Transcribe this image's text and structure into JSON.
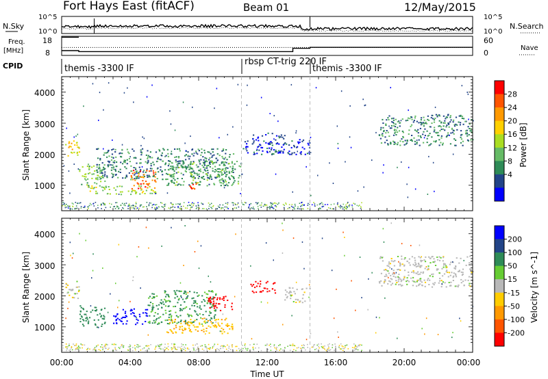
{
  "header": {
    "station": "Fort Hays East (fitACF)",
    "beam": "Beam 01",
    "date": "12/May/2015"
  },
  "noise_panel": {
    "left_label": "N.Sky",
    "right_label": "N.Search",
    "ticks_left": [
      "10^5",
      "10^0"
    ],
    "ticks_right": [
      "10^5",
      "10^0"
    ]
  },
  "freq_panel": {
    "left_label_1": "Freq.",
    "left_label_2": "[MHz]",
    "right_label": "Nave",
    "ticks_left": [
      "18",
      "8"
    ],
    "ticks_right": [
      "60",
      "0"
    ]
  },
  "cpid": {
    "label": "CPID",
    "segments": [
      {
        "name": "themis -3300 IF",
        "start_h": 0.0
      },
      {
        "name": "rbsp CT-trig 220 IF",
        "start_h": 10.5
      },
      {
        "name": "themis -3300 IF",
        "start_h": 14.5
      }
    ]
  },
  "power_panel": {
    "ylabel": "Slant Range [km]",
    "yticks": [
      "4000",
      "3000",
      "2000",
      "1000"
    ],
    "colorbar_label": "Power [dB]",
    "colorbar_ticks": [
      "28",
      "24",
      "20",
      "16",
      "12",
      "8",
      "4"
    ],
    "colors": [
      "#0000ff",
      "#224488",
      "#2e8b57",
      "#66bb66",
      "#aadd22",
      "#ffd000",
      "#ff9900",
      "#ff5500",
      "#ff0000"
    ]
  },
  "velocity_panel": {
    "ylabel": "Slant Range [km]",
    "yticks": [
      "4000",
      "3000",
      "2000",
      "1000"
    ],
    "colorbar_label": "Velocity [m s^-1]",
    "colorbar_ticks": [
      "200",
      "100",
      "50",
      "15",
      "-15",
      "-50",
      "-100",
      "-200"
    ],
    "colors": [
      "#0000ff",
      "#224488",
      "#2e8b57",
      "#66cc33",
      "#b8b8b8",
      "#ffcc00",
      "#ff9900",
      "#ff5500",
      "#ff0000"
    ]
  },
  "x_axis": {
    "label": "Time UT",
    "ticks": [
      "00:00",
      "04:00",
      "08:00",
      "12:00",
      "16:00",
      "20:00",
      "00:00"
    ]
  },
  "chart_data": {
    "type": "heatmap",
    "x_range_hours": [
      0,
      24
    ],
    "y_range_km": [
      180,
      4500
    ],
    "x_major_ticks_hours": [
      0,
      4,
      8,
      12,
      16,
      20,
      24
    ],
    "y_ticks_km": [
      1000,
      2000,
      3000,
      4000
    ],
    "frequency_mhz_steps": [
      {
        "start_h": 0.0,
        "end_h": 1.0,
        "freq": 10.5
      },
      {
        "start_h": 1.0,
        "end_h": 10.5,
        "freq": 10.0
      },
      {
        "start_h": 10.5,
        "end_h": 13.5,
        "freq": 10.0
      },
      {
        "start_h": 13.5,
        "end_h": 14.5,
        "freq": 11.7
      },
      {
        "start_h": 14.5,
        "end_h": 24.0,
        "freq": 12.2
      }
    ],
    "nave_level": 25,
    "power_echo_regions": [
      {
        "t0": 0.2,
        "t1": 1.0,
        "r0": 1900,
        "r1": 2500,
        "db": 20
      },
      {
        "t0": 1.0,
        "t1": 2.5,
        "r0": 1000,
        "r1": 1700,
        "db": 14
      },
      {
        "t0": 1.5,
        "t1": 5.5,
        "r0": 700,
        "r1": 1000,
        "db": 16
      },
      {
        "t0": 2.0,
        "t1": 10.0,
        "r0": 1200,
        "r1": 2200,
        "db": 10
      },
      {
        "t0": 4.0,
        "t1": 5.5,
        "r0": 900,
        "r1": 1500,
        "db": 26
      },
      {
        "t0": 7.0,
        "t1": 8.0,
        "r0": 900,
        "r1": 1100,
        "db": 26
      },
      {
        "t0": 6.0,
        "t1": 10.5,
        "r0": 1000,
        "r1": 1800,
        "db": 12
      },
      {
        "t0": 10.5,
        "t1": 13.0,
        "r0": 2000,
        "r1": 2700,
        "db": 6
      },
      {
        "t0": 13.0,
        "t1": 14.5,
        "r0": 2000,
        "r1": 2500,
        "db": 6
      },
      {
        "t0": 18.5,
        "t1": 24.0,
        "r0": 2300,
        "r1": 3300,
        "db": 10
      }
    ],
    "velocity_echo_regions": [
      {
        "t0": 0.2,
        "t1": 1.0,
        "r0": 1900,
        "r1": 2500,
        "v": 0
      },
      {
        "t0": 1.0,
        "t1": 2.5,
        "r0": 1000,
        "r1": 1700,
        "v": 70
      },
      {
        "t0": 3.0,
        "t1": 5.0,
        "r0": 1100,
        "r1": 1600,
        "v": 220
      },
      {
        "t0": 5.0,
        "t1": 9.0,
        "r0": 1100,
        "r1": 2200,
        "v": 60
      },
      {
        "t0": 6.0,
        "t1": 10.0,
        "r0": 800,
        "r1": 1300,
        "v": -40
      },
      {
        "t0": 8.5,
        "t1": 10.0,
        "r0": 1500,
        "r1": 2000,
        "v": -220
      },
      {
        "t0": 11.0,
        "t1": 12.5,
        "r0": 2100,
        "r1": 2500,
        "v": -230
      },
      {
        "t0": 13.0,
        "t1": 14.5,
        "r0": 1800,
        "r1": 2300,
        "v": 0
      },
      {
        "t0": 18.5,
        "t1": 24.0,
        "r0": 2300,
        "r1": 3300,
        "v": 0
      }
    ]
  }
}
